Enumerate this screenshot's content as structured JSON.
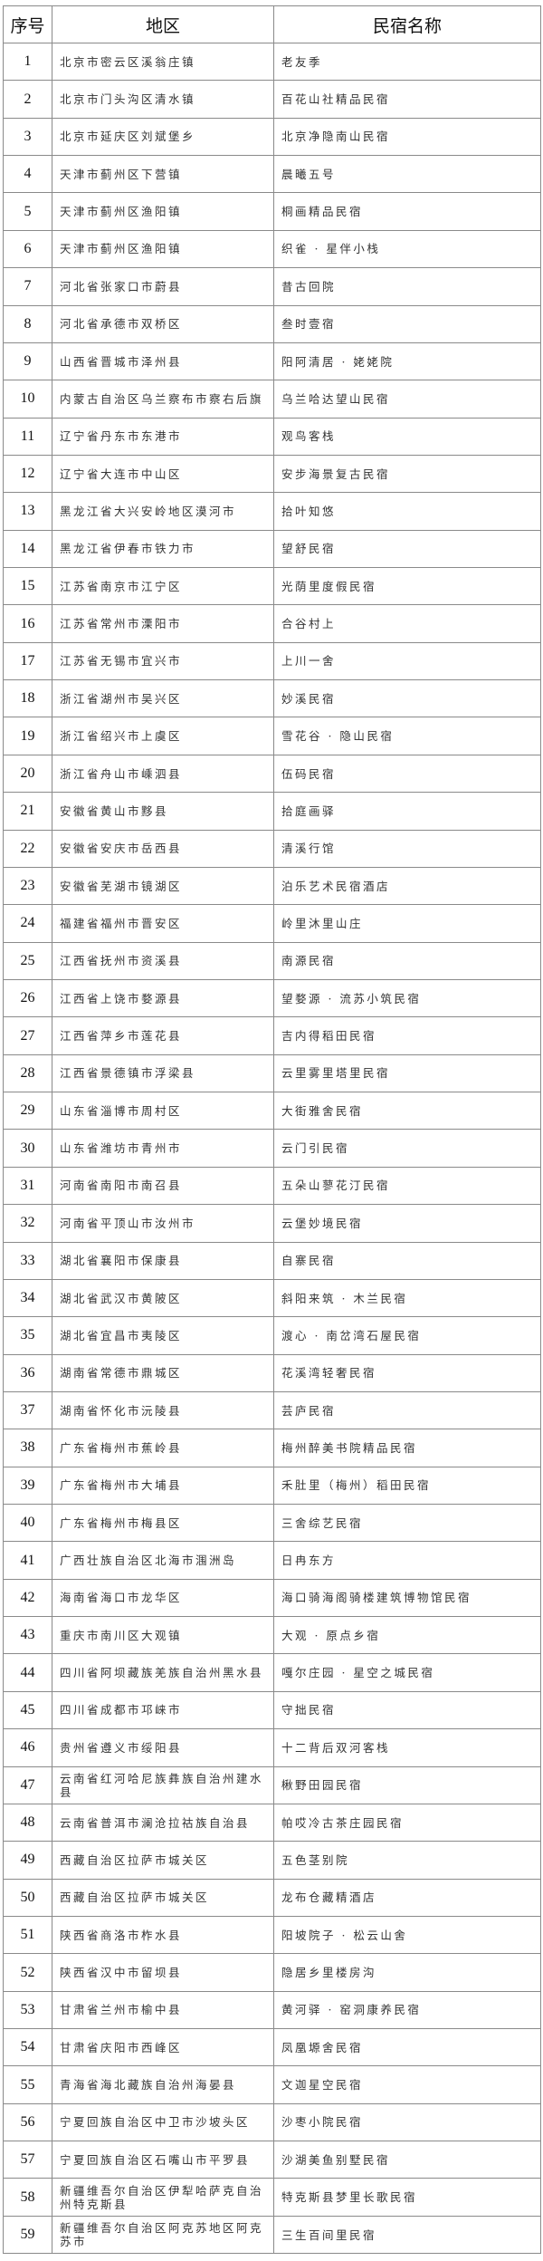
{
  "table": {
    "headers": [
      "序号",
      "地区",
      "民宿名称"
    ],
    "rows": [
      [
        "1",
        "北京市密云区溪翁庄镇",
        "老友季"
      ],
      [
        "2",
        "北京市门头沟区清水镇",
        "百花山社精品民宿"
      ],
      [
        "3",
        "北京市延庆区刘斌堡乡",
        "北京净隐南山民宿"
      ],
      [
        "4",
        "天津市蓟州区下营镇",
        "晨曦五号"
      ],
      [
        "5",
        "天津市蓟州区渔阳镇",
        "桐画精品民宿"
      ],
      [
        "6",
        "天津市蓟州区渔阳镇",
        "织雀 · 星伴小栈"
      ],
      [
        "7",
        "河北省张家口市蔚县",
        "昔古回院"
      ],
      [
        "8",
        "河北省承德市双桥区",
        "叁时壹宿"
      ],
      [
        "9",
        "山西省晋城市泽州县",
        "阳阿清居 · 姥姥院"
      ],
      [
        "10",
        "内蒙古自治区乌兰察布市察右后旗",
        "乌兰哈达望山民宿"
      ],
      [
        "11",
        "辽宁省丹东市东港市",
        "观鸟客栈"
      ],
      [
        "12",
        "辽宁省大连市中山区",
        "安步海景复古民宿"
      ],
      [
        "13",
        "黑龙江省大兴安岭地区漠河市",
        "拾叶知悠"
      ],
      [
        "14",
        "黑龙江省伊春市铁力市",
        "望舒民宿"
      ],
      [
        "15",
        "江苏省南京市江宁区",
        "光荫里度假民宿"
      ],
      [
        "16",
        "江苏省常州市溧阳市",
        "合谷村上"
      ],
      [
        "17",
        "江苏省无锡市宜兴市",
        "上川一舍"
      ],
      [
        "18",
        "浙江省湖州市吴兴区",
        "妙溪民宿"
      ],
      [
        "19",
        "浙江省绍兴市上虞区",
        "雪花谷 · 隐山民宿"
      ],
      [
        "20",
        "浙江省舟山市嵊泗县",
        "伍码民宿"
      ],
      [
        "21",
        "安徽省黄山市黟县",
        "拾庭画驿"
      ],
      [
        "22",
        "安徽省安庆市岳西县",
        "清溪行馆"
      ],
      [
        "23",
        "安徽省芜湖市镜湖区",
        "泊乐艺术民宿酒店"
      ],
      [
        "24",
        "福建省福州市晋安区",
        "岭里沐里山庄"
      ],
      [
        "25",
        "江西省抚州市资溪县",
        "南源民宿"
      ],
      [
        "26",
        "江西省上饶市婺源县",
        "望婺源 · 流苏小筑民宿"
      ],
      [
        "27",
        "江西省萍乡市莲花县",
        "吉内得稻田民宿"
      ],
      [
        "28",
        "江西省景德镇市浮梁县",
        "云里雾里塔里民宿"
      ],
      [
        "29",
        "山东省淄博市周村区",
        "大街雅舍民宿"
      ],
      [
        "30",
        "山东省潍坊市青州市",
        "云门引民宿"
      ],
      [
        "31",
        "河南省南阳市南召县",
        "五朵山蓼花汀民宿"
      ],
      [
        "32",
        "河南省平顶山市汝州市",
        "云堡妙境民宿"
      ],
      [
        "33",
        "湖北省襄阳市保康县",
        "自寨民宿"
      ],
      [
        "34",
        "湖北省武汉市黄陂区",
        "斜阳来筑 · 木兰民宿"
      ],
      [
        "35",
        "湖北省宜昌市夷陵区",
        "渡心 · 南岔湾石屋民宿"
      ],
      [
        "36",
        "湖南省常德市鼎城区",
        "花溪湾轻奢民宿"
      ],
      [
        "37",
        "湖南省怀化市沅陵县",
        "芸庐民宿"
      ],
      [
        "38",
        "广东省梅州市蕉岭县",
        "梅州醉美书院精品民宿"
      ],
      [
        "39",
        "广东省梅州市大埔县",
        "禾肚里（梅州）稻田民宿"
      ],
      [
        "40",
        "广东省梅州市梅县区",
        "三舍综艺民宿"
      ],
      [
        "41",
        "广西壮族自治区北海市涠洲岛",
        "日冉东方"
      ],
      [
        "42",
        "海南省海口市龙华区",
        "海口骑海阁骑楼建筑博物馆民宿"
      ],
      [
        "43",
        "重庆市南川区大观镇",
        "大观 · 原点乡宿"
      ],
      [
        "44",
        "四川省阿坝藏族羌族自治州黑水县",
        "嘎尔庄园 · 星空之城民宿"
      ],
      [
        "45",
        "四川省成都市邛崃市",
        "守拙民宿"
      ],
      [
        "46",
        "贵州省遵义市绥阳县",
        "十二背后双河客栈"
      ],
      [
        "47",
        "云南省红河哈尼族彝族自治州建水县",
        "楸野田园民宿"
      ],
      [
        "48",
        "云南省普洱市澜沧拉祜族自治县",
        "帕哎冷古茶庄园民宿"
      ],
      [
        "49",
        "西藏自治区拉萨市城关区",
        "五色茎别院"
      ],
      [
        "50",
        "西藏自治区拉萨市城关区",
        "龙布仓藏精酒店"
      ],
      [
        "51",
        "陕西省商洛市柞水县",
        "阳坡院子 · 松云山舍"
      ],
      [
        "52",
        "陕西省汉中市留坝县",
        "隐居乡里楼房沟"
      ],
      [
        "53",
        "甘肃省兰州市榆中县",
        "黄河驿 · 窑洞康养民宿"
      ],
      [
        "54",
        "甘肃省庆阳市西峰区",
        "凤凰塬舍民宿"
      ],
      [
        "55",
        "青海省海北藏族自治州海晏县",
        "文迦星空民宿"
      ],
      [
        "56",
        "宁夏回族自治区中卫市沙坡头区",
        "沙枣小院民宿"
      ],
      [
        "57",
        "宁夏回族自治区石嘴山市平罗县",
        "沙湖美鱼别墅民宿"
      ],
      [
        "58",
        "新疆维吾尔自治区伊犁哈萨克自治州特克斯县",
        "特克斯县梦里长歌民宿"
      ],
      [
        "59",
        "新疆维吾尔自治区阿克苏地区阿克苏市",
        "三生百间里民宿"
      ]
    ]
  }
}
